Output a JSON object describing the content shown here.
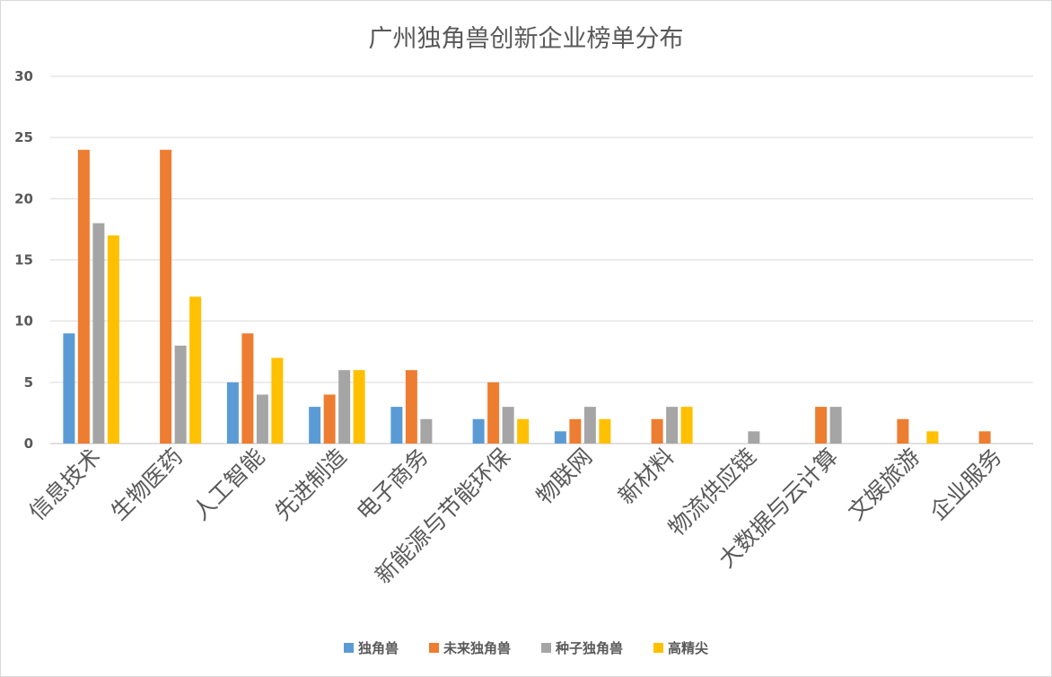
{
  "chart_data": {
    "type": "bar",
    "title": "广州独角兽创新企业榜单分布",
    "xlabel": "",
    "ylabel": "",
    "ylim": [
      0,
      30
    ],
    "yticks": [
      0,
      5,
      10,
      15,
      20,
      25,
      30
    ],
    "grid": true,
    "legend_position": "bottom",
    "categories": [
      "信息技术",
      "生物医药",
      "人工智能",
      "先进制造",
      "电子商务",
      "新能源与节能环保",
      "物联网",
      "新材料",
      "物流供应链",
      "大数据与云计算",
      "文娱旅游",
      "企业服务"
    ],
    "series": [
      {
        "name": "独角兽",
        "color": "#5B9BD5",
        "values": [
          9,
          0,
          5,
          3,
          3,
          2,
          1,
          0,
          0,
          0,
          0,
          0
        ]
      },
      {
        "name": "未来独角兽",
        "color": "#ED7D31",
        "values": [
          24,
          24,
          9,
          4,
          6,
          5,
          2,
          2,
          0,
          3,
          2,
          1
        ]
      },
      {
        "name": "种子独角兽",
        "color": "#A5A5A5",
        "values": [
          18,
          8,
          4,
          6,
          2,
          3,
          3,
          3,
          1,
          3,
          0,
          0
        ]
      },
      {
        "name": "高精尖",
        "color": "#FFC000",
        "values": [
          17,
          12,
          7,
          6,
          0,
          2,
          2,
          3,
          0,
          0,
          1,
          0
        ]
      }
    ]
  }
}
